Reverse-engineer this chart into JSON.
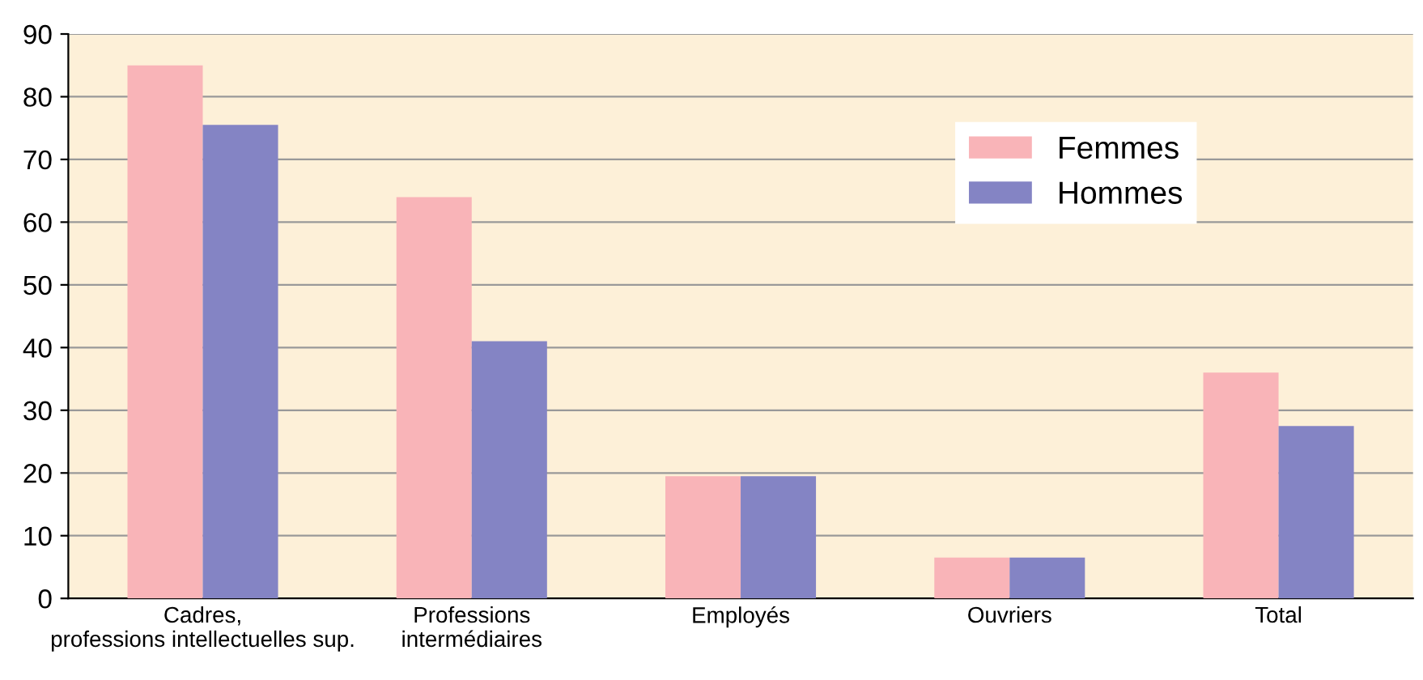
{
  "chart_data": {
    "type": "bar",
    "categories": [
      "Cadres,\nprofessions intellectuelles sup.",
      "Professions\nintermédiaires",
      "Employés",
      "Ouvriers",
      "Total"
    ],
    "series": [
      {
        "name": "Femmes",
        "color": "#f9b4b8",
        "values": [
          85,
          64,
          19.5,
          6.5,
          36
        ]
      },
      {
        "name": "Hommes",
        "color": "#8484c4",
        "values": [
          75.5,
          41,
          19.5,
          6.5,
          27.5
        ]
      }
    ],
    "ylim": [
      0,
      90
    ],
    "yticks": [
      0,
      10,
      20,
      30,
      40,
      50,
      60,
      70,
      80,
      90
    ],
    "grid": "y",
    "legend": "top right"
  }
}
